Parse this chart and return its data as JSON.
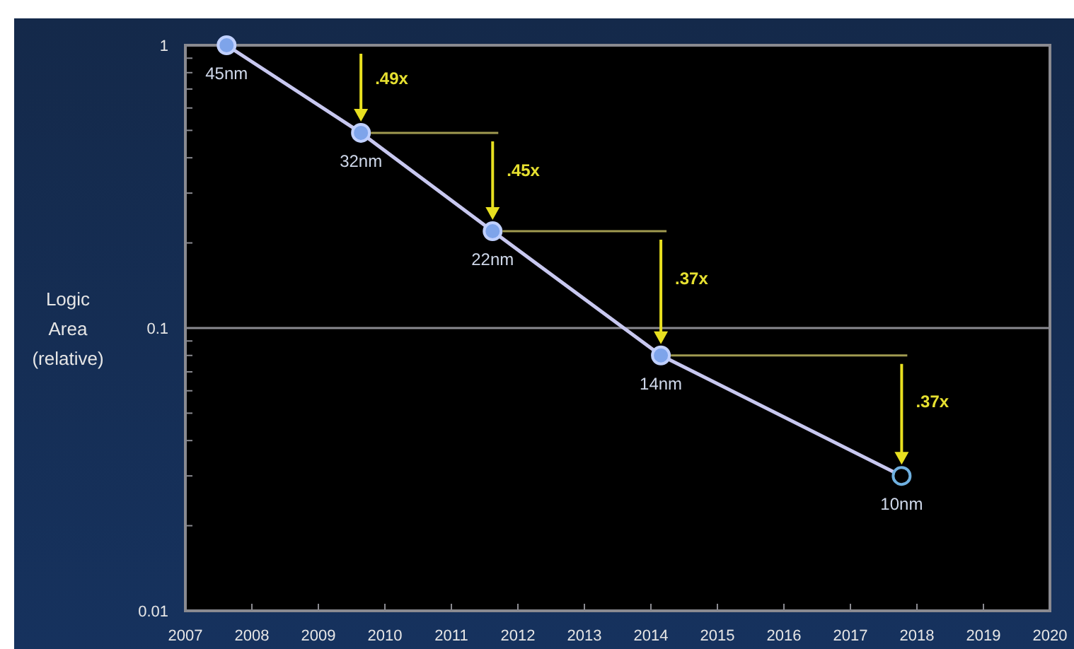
{
  "chart_data": {
    "type": "line",
    "ylabel": "Logic Area (relative)",
    "x": [
      2007.62,
      2009.64,
      2011.62,
      2014.15,
      2017.77
    ],
    "series": [
      {
        "color": "#c8c8f0",
        "values": [
          1,
          0.49,
          0.22,
          0.08,
          0.03
        ]
      }
    ],
    "xlim": [
      2007,
      2020
    ],
    "xticks": [
      2007,
      2008,
      2009,
      2010,
      2011,
      2012,
      2013,
      2014,
      2015,
      2016,
      2017,
      2018,
      2019,
      2020
    ],
    "ylim": [
      0.01,
      1
    ],
    "yticks": [
      0.01,
      0.1,
      1
    ],
    "log": "y",
    "grid": "y",
    "marker": "circle",
    "annotations": [
      {
        "text": "45nm",
        "x": 2007.62,
        "y": 1
      },
      {
        "text": "32nm",
        "x": 2009.64,
        "y": 0.49
      },
      {
        "text": "22nm",
        "x": 2011.62,
        "y": 0.22
      },
      {
        "text": "14nm",
        "x": 2014.15,
        "y": 0.08
      },
      {
        "text": "10nm",
        "x": 2017.77,
        "y": 0.03
      },
      ".49x",
      ".45x",
      ".37x",
      ".37x"
    ]
  }
}
